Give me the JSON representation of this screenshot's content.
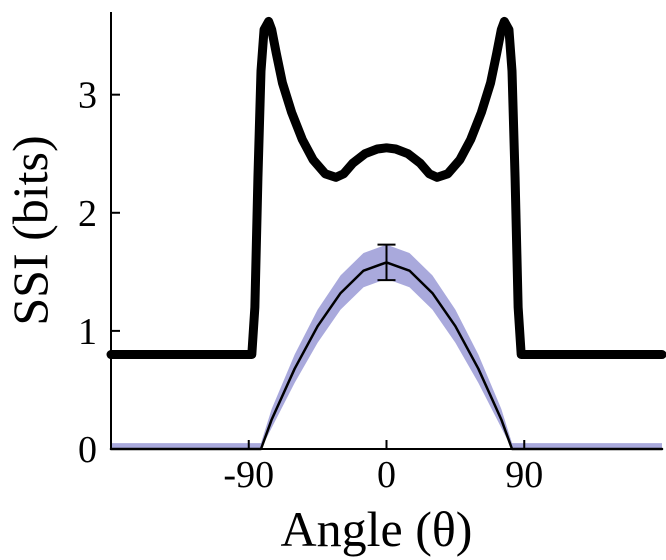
{
  "chart_data": {
    "type": "line",
    "xlabel": "Angle (θ)",
    "ylabel": "SSI (bits)",
    "xlim": [
      -180,
      180
    ],
    "ylim": [
      0,
      3.7
    ],
    "x_ticks": [
      -90,
      0,
      90
    ],
    "x_tick_labels": [
      "-90",
      "0",
      "90"
    ],
    "y_ticks": [
      0,
      1,
      2,
      3
    ],
    "y_tick_labels": [
      "0",
      "1",
      "2",
      "3"
    ],
    "grid": false,
    "legend": "none",
    "colors": {
      "upper_curve": "#000000",
      "lower_curve": "#000000",
      "band": "#a9a9dc"
    },
    "series": [
      {
        "style": "thick-line",
        "x": [
          -180,
          -88,
          -86,
          -84,
          -82,
          -80,
          -77,
          -75,
          -72,
          -68,
          -62,
          -55,
          -48,
          -40,
          -33,
          -28,
          -22,
          -14,
          -6,
          0,
          6,
          14,
          22,
          28,
          33,
          40,
          48,
          55,
          62,
          68,
          72,
          75,
          77,
          80,
          82,
          84,
          86,
          88,
          180
        ],
        "y": [
          0.8,
          0.8,
          1.2,
          2.3,
          3.2,
          3.55,
          3.62,
          3.55,
          3.35,
          3.1,
          2.85,
          2.62,
          2.45,
          2.33,
          2.3,
          2.33,
          2.42,
          2.5,
          2.54,
          2.55,
          2.54,
          2.5,
          2.42,
          2.33,
          2.3,
          2.33,
          2.45,
          2.62,
          2.85,
          3.1,
          3.35,
          3.55,
          3.62,
          3.55,
          3.2,
          2.3,
          1.2,
          0.8,
          0.8
        ]
      },
      {
        "style": "thin-line",
        "x": [
          -180,
          -82,
          -75,
          -60,
          -45,
          -30,
          -15,
          0,
          15,
          30,
          45,
          60,
          75,
          82,
          180
        ],
        "y": [
          0,
          0,
          0.25,
          0.68,
          1.04,
          1.32,
          1.51,
          1.58,
          1.51,
          1.32,
          1.04,
          0.68,
          0.25,
          0,
          0
        ]
      }
    ],
    "band": {
      "x": [
        -180,
        -82,
        -75,
        -60,
        -45,
        -30,
        -15,
        0,
        15,
        30,
        45,
        60,
        75,
        82,
        180
      ],
      "lower": [
        0,
        0,
        0.18,
        0.56,
        0.9,
        1.18,
        1.37,
        1.44,
        1.37,
        1.18,
        0.9,
        0.56,
        0.18,
        0,
        0
      ],
      "upper": [
        0.05,
        0.05,
        0.34,
        0.8,
        1.18,
        1.47,
        1.66,
        1.73,
        1.66,
        1.47,
        1.18,
        0.8,
        0.34,
        0.05,
        0.05
      ]
    },
    "error_bar": {
      "x": 0,
      "y": 1.58,
      "low": 1.43,
      "high": 1.73
    }
  }
}
